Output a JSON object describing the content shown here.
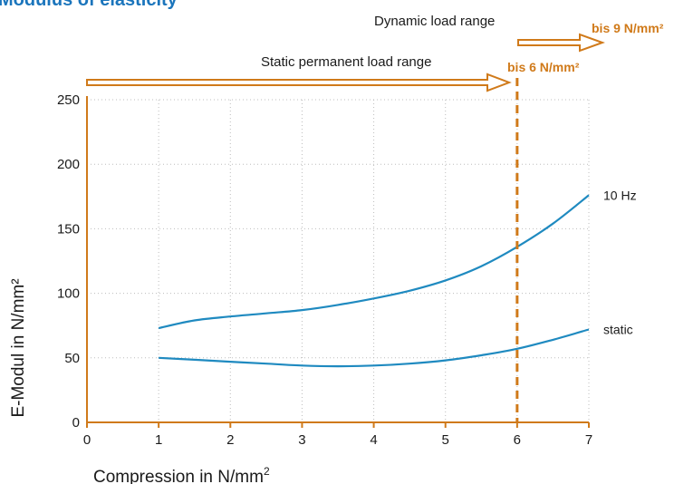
{
  "chart_data": {
    "type": "line",
    "title": "Modulus of elasticity",
    "xlabel": "Compression in N/mm",
    "xlabel_sup": "2",
    "ylabel": "E-Modul in N/mm²",
    "xlim": [
      0,
      7
    ],
    "ylim": [
      0,
      250
    ],
    "x_ticks": [
      0,
      1,
      2,
      3,
      4,
      5,
      6,
      7
    ],
    "y_ticks": [
      0,
      50,
      100,
      150,
      200,
      250
    ],
    "grid": true,
    "series": [
      {
        "name": "10 Hz",
        "color": "#1f8ac0",
        "x": [
          1,
          1.5,
          2,
          2.5,
          3,
          3.5,
          4,
          4.5,
          5,
          5.5,
          6,
          6.5,
          7
        ],
        "y": [
          73,
          79,
          82,
          84.5,
          87,
          91,
          96,
          102,
          110,
          121,
          136,
          154,
          176
        ]
      },
      {
        "name": "static",
        "color": "#1f8ac0",
        "x": [
          1,
          1.5,
          2,
          2.5,
          3,
          3.5,
          4,
          4.5,
          5,
          5.5,
          6,
          6.5,
          7
        ],
        "y": [
          50,
          48.5,
          47,
          45.5,
          44,
          43.5,
          44,
          45.5,
          48,
          52,
          57,
          64,
          72
        ]
      }
    ],
    "annotations": {
      "dynamic_range_label": "Dynamic load range",
      "static_range_label": "Static permanent load range",
      "static_limit_label": "bis 6 N/mm²",
      "dynamic_limit_label": "bis 9 N/mm²",
      "static_limit_x": 6,
      "accent_color": "#d07a1a"
    }
  }
}
